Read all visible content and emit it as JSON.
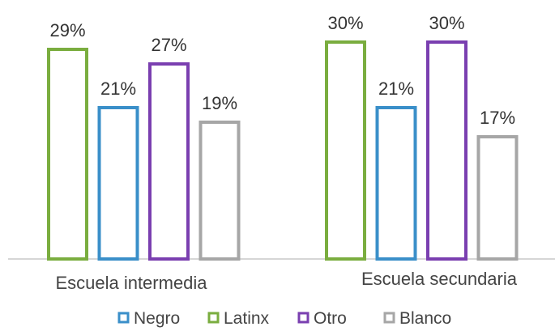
{
  "chart_data": {
    "type": "bar",
    "categories": [
      "Escuela intermedia",
      "Escuela secundaria"
    ],
    "series": [
      {
        "name": "Latinx",
        "color": "#7aad3f",
        "values": [
          29,
          30
        ]
      },
      {
        "name": "Negro",
        "color": "#3a8fc9",
        "values": [
          21,
          21
        ]
      },
      {
        "name": "Otro",
        "color": "#7a3fb0",
        "values": [
          27,
          30
        ]
      },
      {
        "name": "Blanco",
        "color": "#a6a6a6",
        "values": [
          19,
          17
        ]
      }
    ],
    "value_labels": [
      [
        "29%",
        "30%"
      ],
      [
        "21%",
        "21%"
      ],
      [
        "27%",
        "30%"
      ],
      [
        "19%",
        "17%"
      ]
    ],
    "legend": [
      "Negro",
      "Latinx",
      "Otro",
      "Blanco"
    ],
    "legend_position": "bottom",
    "ylim": [
      0,
      32
    ],
    "grid": false,
    "title": "",
    "xlabel": "",
    "ylabel": ""
  }
}
